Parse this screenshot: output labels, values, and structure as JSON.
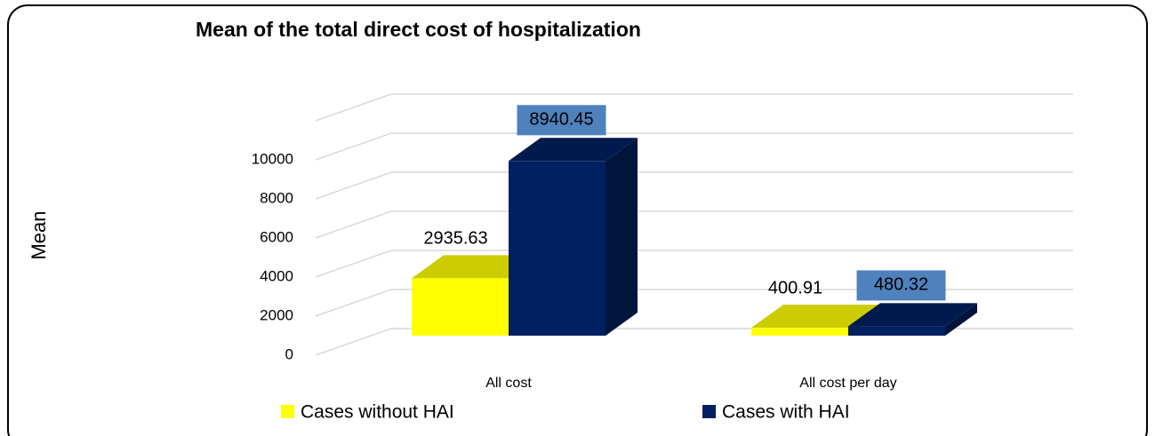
{
  "chart_data": {
    "type": "bar3d",
    "title": "Mean of the total direct cost of hospitalization",
    "y_label": "Mean",
    "categories": [
      "All cost",
      "All cost  per day"
    ],
    "series": [
      {
        "name": "Cases without HAI",
        "color": "#ffff00",
        "values": [
          2935.63,
          400.91
        ]
      },
      {
        "name": "Cases with HAI",
        "color": "#002060",
        "values": [
          8940.45,
          480.32
        ]
      }
    ],
    "ylim": [
      0,
      12000
    ],
    "yticks": [
      0,
      2000,
      4000,
      6000,
      8000,
      10000
    ],
    "grid": true
  }
}
